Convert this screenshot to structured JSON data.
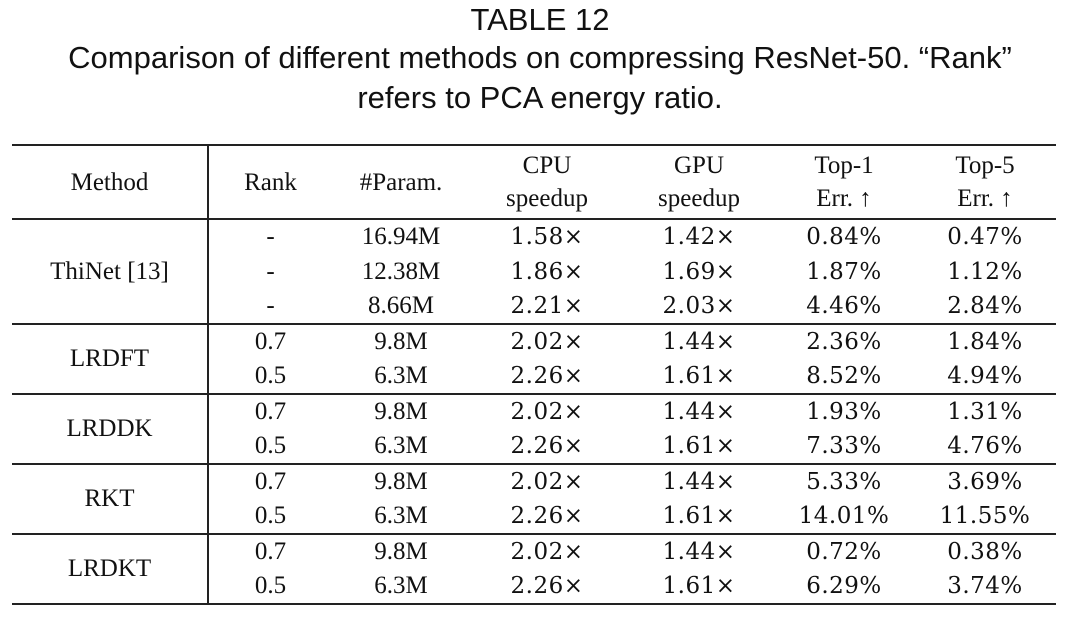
{
  "caption": {
    "label": "TABLE 12",
    "line1": "Comparison of different methods on compressing ResNet-50. “Rank”",
    "line2": "refers to PCA energy ratio."
  },
  "table": {
    "headers": {
      "method": "Method",
      "rank": "Rank",
      "param": "#Param.",
      "cpu": [
        "CPU",
        "speedup"
      ],
      "gpu": [
        "GPU",
        "speedup"
      ],
      "top1": [
        "Top-1",
        "Err. ↑"
      ],
      "top5": [
        "Top-5",
        "Err. ↑"
      ]
    },
    "groups": [
      {
        "method": "ThiNet [13]",
        "rows": [
          {
            "rank": "-",
            "param": "16.94M",
            "cpu": "1.58×",
            "gpu": "1.42×",
            "top1": "0.84%",
            "top5": "0.47%"
          },
          {
            "rank": "-",
            "param": "12.38M",
            "cpu": "1.86×",
            "gpu": "1.69×",
            "top1": "1.87%",
            "top5": "1.12%"
          },
          {
            "rank": "-",
            "param": "8.66M",
            "cpu": "2.21×",
            "gpu": "2.03×",
            "top1": "4.46%",
            "top5": "2.84%"
          }
        ]
      },
      {
        "method": "LRDFT",
        "rows": [
          {
            "rank": "0.7",
            "param": "9.8M",
            "cpu": "2.02×",
            "gpu": "1.44×",
            "top1": "2.36%",
            "top5": "1.84%"
          },
          {
            "rank": "0.5",
            "param": "6.3M",
            "cpu": "2.26×",
            "gpu": "1.61×",
            "top1": "8.52%",
            "top5": "4.94%"
          }
        ]
      },
      {
        "method": "LRDDK",
        "rows": [
          {
            "rank": "0.7",
            "param": "9.8M",
            "cpu": "2.02×",
            "gpu": "1.44×",
            "top1": "1.93%",
            "top5": "1.31%"
          },
          {
            "rank": "0.5",
            "param": "6.3M",
            "cpu": "2.26×",
            "gpu": "1.61×",
            "top1": "7.33%",
            "top5": "4.76%"
          }
        ]
      },
      {
        "method": "RKT",
        "rows": [
          {
            "rank": "0.7",
            "param": "9.8M",
            "cpu": "2.02×",
            "gpu": "1.44×",
            "top1": "5.33%",
            "top5": "3.69%"
          },
          {
            "rank": "0.5",
            "param": "6.3M",
            "cpu": "2.26×",
            "gpu": "1.61×",
            "top1": "14.01%",
            "top5": "11.55%"
          }
        ]
      },
      {
        "method": "LRDKT",
        "rows": [
          {
            "rank": "0.7",
            "param": "9.8M",
            "cpu": "2.02×",
            "gpu": "1.44×",
            "top1": "0.72%",
            "top5": "0.38%"
          },
          {
            "rank": "0.5",
            "param": "6.3M",
            "cpu": "2.26×",
            "gpu": "1.61×",
            "top1": "6.29%",
            "top5": "3.74%"
          }
        ]
      }
    ]
  }
}
